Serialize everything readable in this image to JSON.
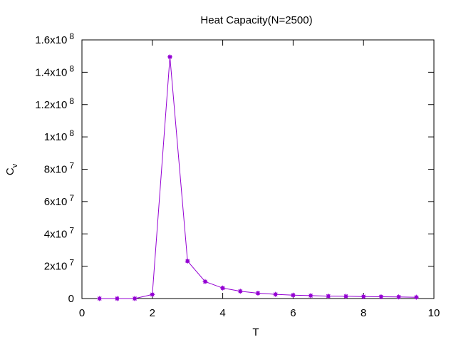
{
  "chart_data": {
    "type": "line",
    "title": "Heat Capacity(N=2500)",
    "xlabel": "T",
    "ylabel": {
      "base": "C",
      "subscript": "v"
    },
    "xlim": [
      0,
      10
    ],
    "ylim": [
      0,
      160000000
    ],
    "x_ticks": [
      {
        "value": 0,
        "label": "0"
      },
      {
        "value": 2,
        "label": "2"
      },
      {
        "value": 4,
        "label": "4"
      },
      {
        "value": 6,
        "label": "6"
      },
      {
        "value": 8,
        "label": "8"
      },
      {
        "value": 10,
        "label": "10"
      }
    ],
    "y_ticks": [
      {
        "value": 0,
        "mantissa": "0",
        "exponent": ""
      },
      {
        "value": 20000000,
        "mantissa": "2x10",
        "exponent": "7"
      },
      {
        "value": 40000000,
        "mantissa": "4x10",
        "exponent": "7"
      },
      {
        "value": 60000000,
        "mantissa": "6x10",
        "exponent": "7"
      },
      {
        "value": 80000000,
        "mantissa": "8x10",
        "exponent": "7"
      },
      {
        "value": 100000000,
        "mantissa": "1x10",
        "exponent": "8"
      },
      {
        "value": 120000000,
        "mantissa": "1.2x10",
        "exponent": "8"
      },
      {
        "value": 140000000,
        "mantissa": "1.4x10",
        "exponent": "8"
      },
      {
        "value": 160000000,
        "mantissa": "1.6x10",
        "exponent": "8"
      }
    ],
    "grid": false,
    "series": [
      {
        "color": "#9400d3",
        "x": [
          0.5,
          1.0,
          1.5,
          2.0,
          2.5,
          3.0,
          3.5,
          4.0,
          4.5,
          5.0,
          5.5,
          6.0,
          6.5,
          7.0,
          7.5,
          8.0,
          8.5,
          9.0,
          9.5
        ],
        "y": [
          0,
          0,
          0,
          2500000,
          149500000,
          23200000,
          10500000,
          6500000,
          4500000,
          3300000,
          2600000,
          2100000,
          1800000,
          1500000,
          1400000,
          1200000,
          1100000,
          1000000,
          800000
        ]
      }
    ]
  }
}
